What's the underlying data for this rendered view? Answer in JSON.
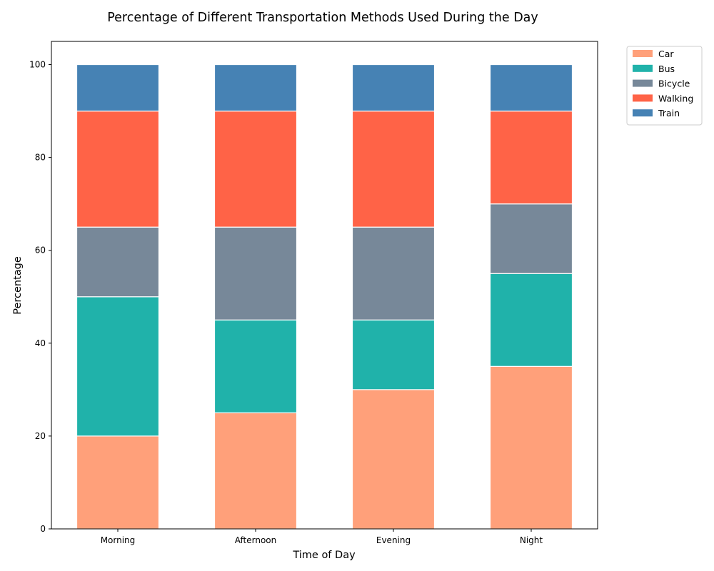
{
  "chart_data": {
    "type": "bar",
    "stacked": true,
    "title": "Percentage of Different Transportation Methods Used During the Day",
    "xlabel": "Time of Day",
    "ylabel": "Percentage",
    "categories": [
      "Morning",
      "Afternoon",
      "Evening",
      "Night"
    ],
    "series": [
      {
        "name": "Car",
        "color": "#FFA07A",
        "values": [
          20,
          25,
          30,
          35
        ]
      },
      {
        "name": "Bus",
        "color": "#20B2AA",
        "values": [
          30,
          20,
          15,
          20
        ]
      },
      {
        "name": "Bicycle",
        "color": "#778899",
        "values": [
          15,
          20,
          20,
          15
        ]
      },
      {
        "name": "Walking",
        "color": "#FF6347",
        "values": [
          25,
          25,
          25,
          20
        ]
      },
      {
        "name": "Train",
        "color": "#4682B4",
        "values": [
          10,
          10,
          10,
          10
        ]
      }
    ],
    "ylim": [
      0,
      105
    ],
    "yticks": [
      0,
      20,
      40,
      60,
      80,
      100
    ],
    "grid": false,
    "legend_position": "outside-top-right"
  }
}
